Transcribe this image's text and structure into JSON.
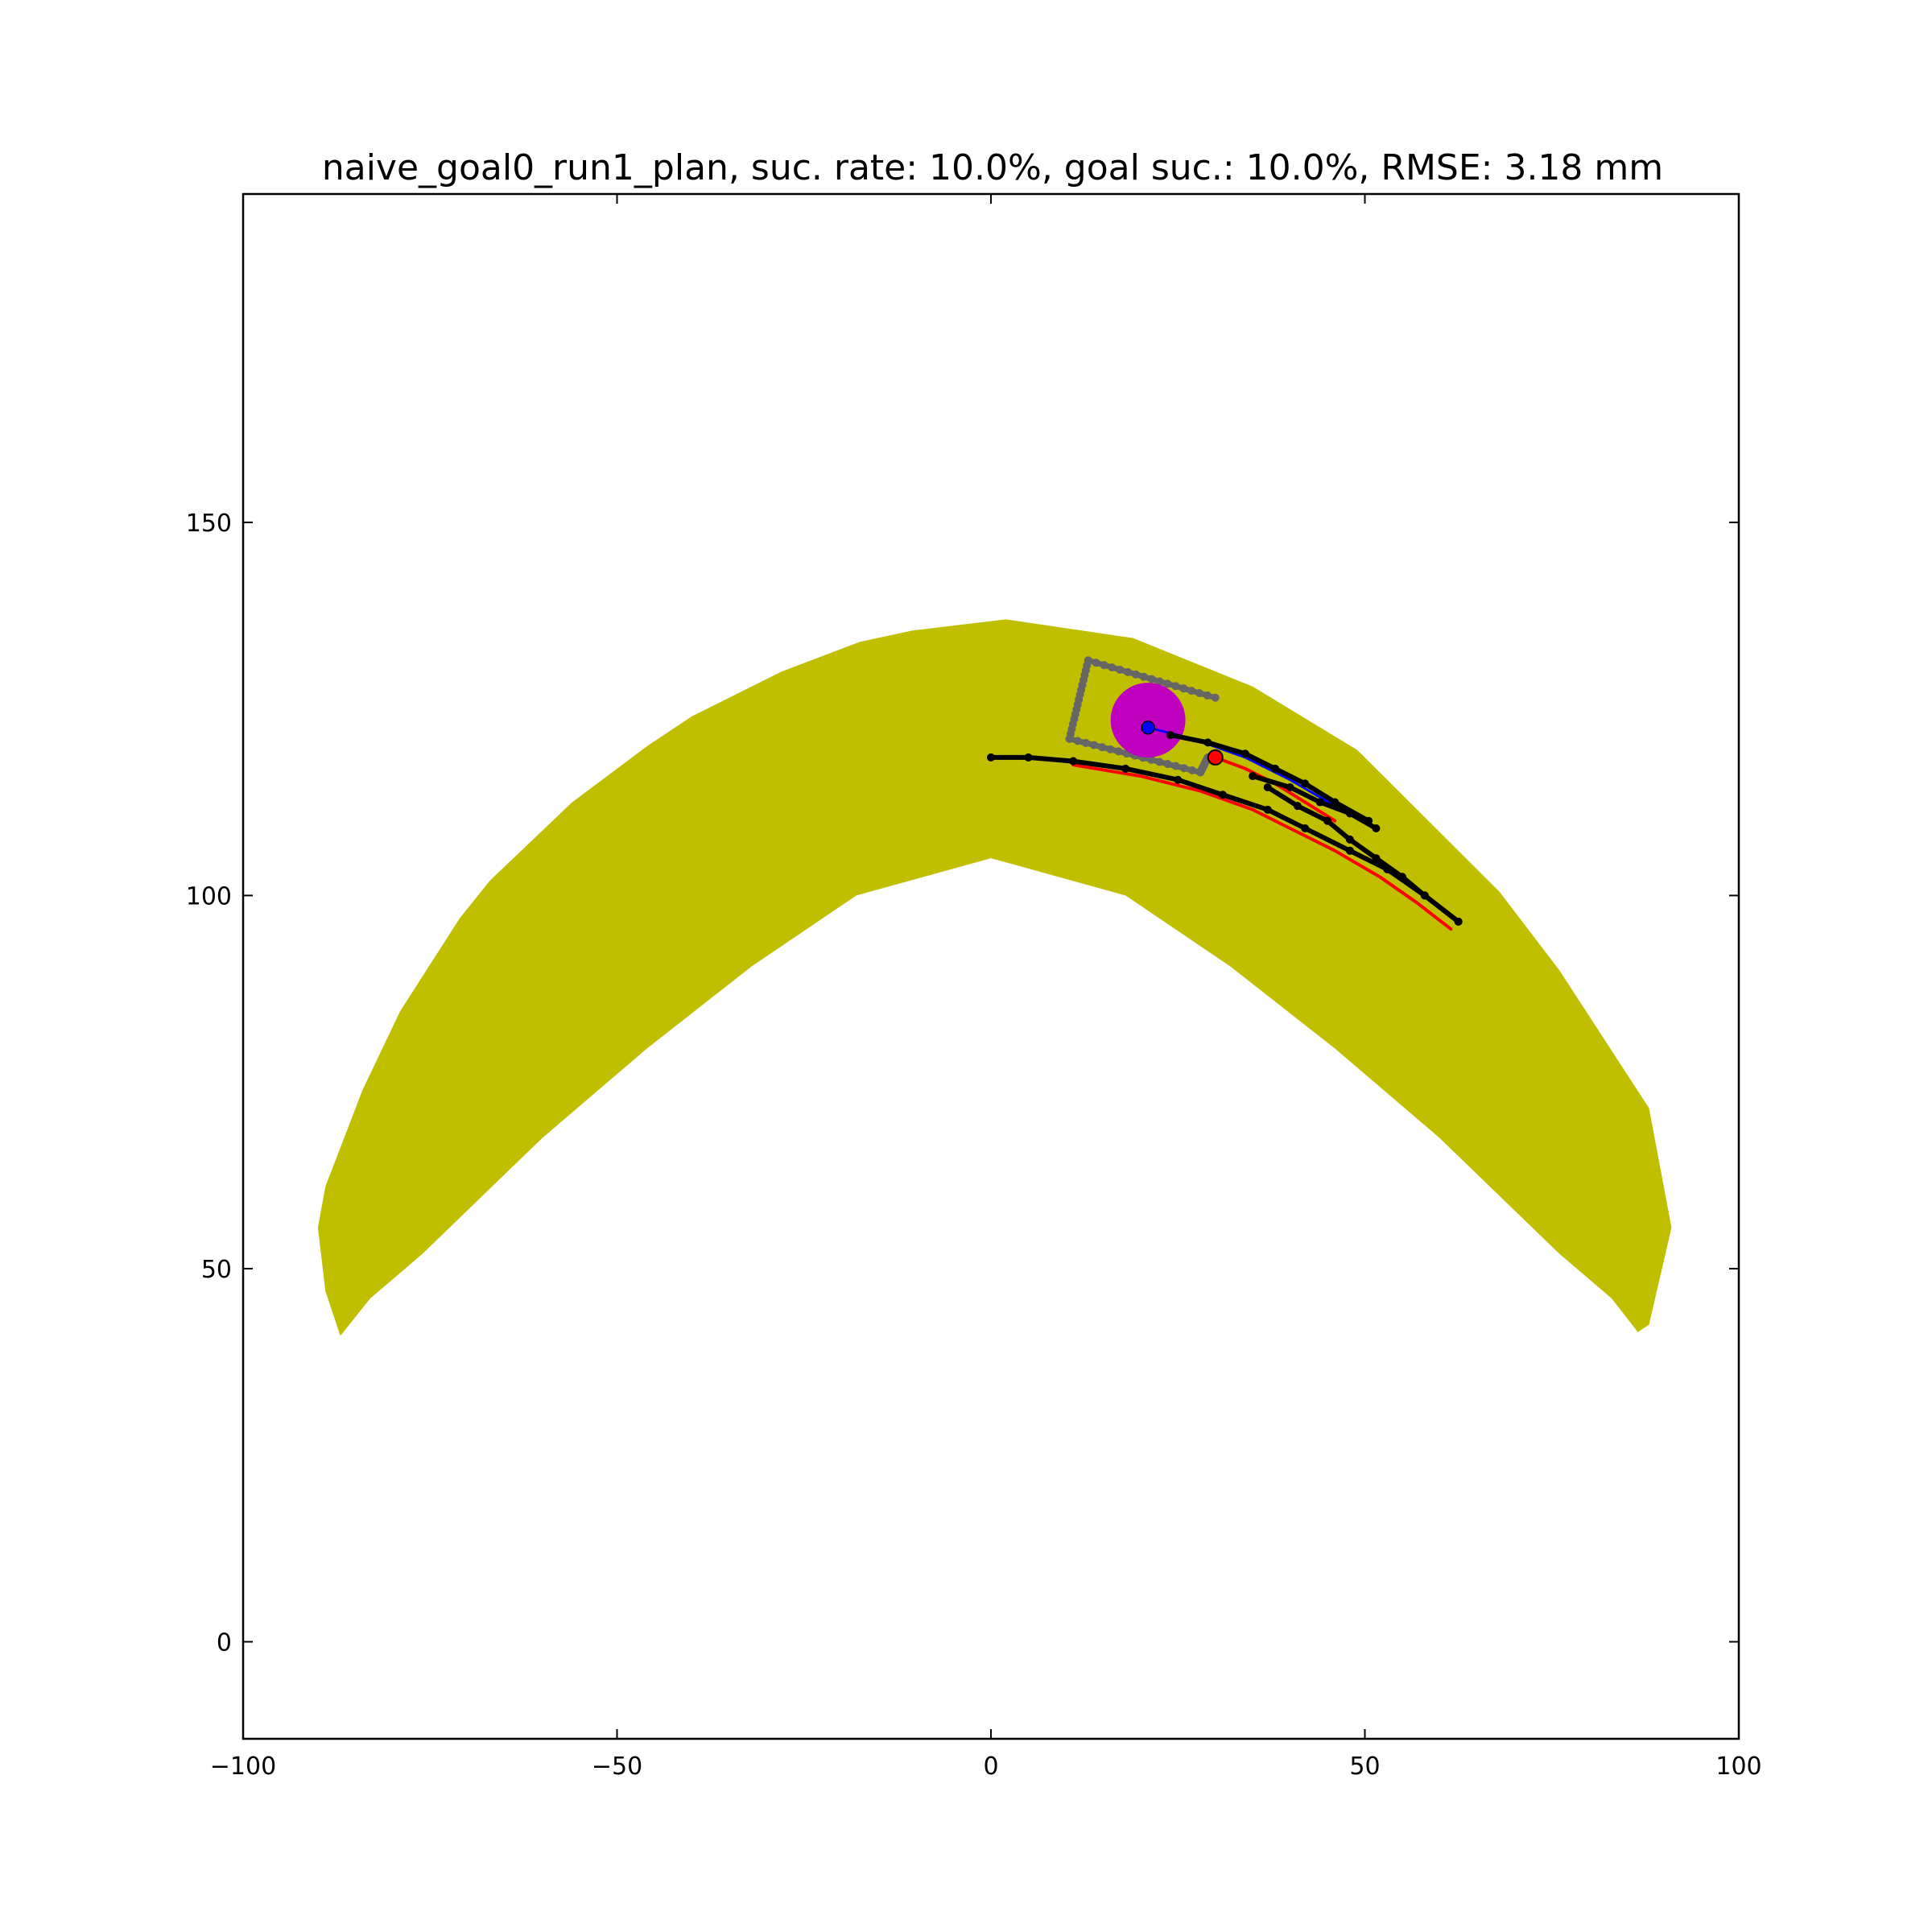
{
  "chart_data": {
    "type": "scatter",
    "title": "naive_goal0_run1_plan, suc. rate: 10.0%, goal suc.: 10.0%, RMSE: 3.18 mm",
    "xlabel": "",
    "ylabel": "",
    "xlim": [
      -100,
      100
    ],
    "ylim": [
      -13,
      194
    ],
    "xticks": [
      -100,
      -50,
      0,
      50,
      100
    ],
    "xtick_labels": [
      "−100",
      "−50",
      "0",
      "50",
      "100"
    ],
    "yticks": [
      0,
      50,
      100,
      150
    ],
    "ytick_labels": [
      "0",
      "50",
      "100",
      "150"
    ],
    "grid": false,
    "legend": "none",
    "colors": {
      "region": "#bfbf00",
      "plan": "#000000",
      "actual": "#ff0000",
      "reference": "#0000ff",
      "goal": "#bf00bf",
      "workspace_box": "#666666"
    },
    "region": {
      "name": "",
      "polygon": [
        [
          -90,
          55.5
        ],
        [
          -89,
          61
        ],
        [
          -84,
          74
        ],
        [
          -79,
          84.5
        ],
        [
          -71,
          97
        ],
        [
          -67,
          102
        ],
        [
          -56,
          112.5
        ],
        [
          -46,
          120
        ],
        [
          -40,
          124
        ],
        [
          -28,
          130
        ],
        [
          -17.5,
          134
        ],
        [
          -10.5,
          135.5
        ],
        [
          2,
          137
        ],
        [
          19,
          134.5
        ],
        [
          35,
          128
        ],
        [
          49,
          119.5
        ],
        [
          68,
          100.5
        ],
        [
          76,
          90
        ],
        [
          88,
          71.5
        ],
        [
          91,
          55.5
        ],
        [
          88,
          42.5
        ],
        [
          86.5,
          41.5
        ],
        [
          83,
          46
        ],
        [
          76,
          52
        ],
        [
          60,
          67.5
        ],
        [
          46,
          79.5
        ],
        [
          32,
          90.5
        ],
        [
          18,
          100
        ],
        [
          0,
          105
        ],
        [
          -18,
          100
        ],
        [
          -32,
          90.5
        ],
        [
          -46,
          79.5
        ],
        [
          -60,
          67.5
        ],
        [
          -76,
          52
        ],
        [
          -83,
          46
        ],
        [
          -87,
          41
        ],
        [
          -89,
          47
        ]
      ]
    },
    "workspace_box": {
      "name": "",
      "x": [
        30,
        13,
        10.5,
        28,
        29
      ],
      "y": [
        126.5,
        131.5,
        121,
        116.5,
        118.5
      ]
    },
    "goal": {
      "name": "",
      "x": 21,
      "y": 123.5,
      "radius": 5
    },
    "tip_point": {
      "name": "",
      "x": 21,
      "y": 122.5
    },
    "current_point": {
      "name": "",
      "x": 30,
      "y": 118.5
    },
    "series": [
      {
        "role": "reference",
        "x": [
          21,
          27,
          34,
          40,
          46
        ],
        "y": [
          122.5,
          121,
          118.5,
          115.5,
          112
        ]
      },
      {
        "role": "actual",
        "x": [
          11,
          20,
          28,
          35,
          40,
          46,
          52,
          57,
          61.5
        ],
        "y": [
          117.5,
          116,
          114,
          111.5,
          109,
          106,
          102.5,
          99,
          95.5
        ]
      },
      {
        "role": "actual",
        "x": [
          30,
          34,
          38,
          42,
          46
        ],
        "y": [
          118.5,
          117,
          115,
          112.5,
          110
        ]
      },
      {
        "role": "plan",
        "x": [
          0,
          5,
          11,
          18,
          25,
          31,
          37,
          42,
          48,
          53,
          58,
          62.5
        ],
        "y": [
          118.5,
          118.5,
          118,
          117,
          115.5,
          113.5,
          111.5,
          109,
          106,
          103.5,
          100,
          96.5
        ]
      },
      {
        "role": "plan",
        "x": [
          24,
          29,
          34,
          38,
          42,
          46,
          50.5
        ],
        "y": [
          121.5,
          120.5,
          119,
          117,
          115,
          112.5,
          110
        ]
      },
      {
        "role": "plan",
        "x": [
          35,
          40,
          44,
          48,
          51.5
        ],
        "y": [
          116,
          114.5,
          112.5,
          111,
          109
        ]
      },
      {
        "role": "plan",
        "x": [
          37,
          41,
          45,
          48,
          51.5,
          55,
          58,
          62.5
        ],
        "y": [
          114.5,
          112,
          110,
          107.5,
          105,
          102.5,
          100,
          96.5
        ]
      }
    ]
  }
}
